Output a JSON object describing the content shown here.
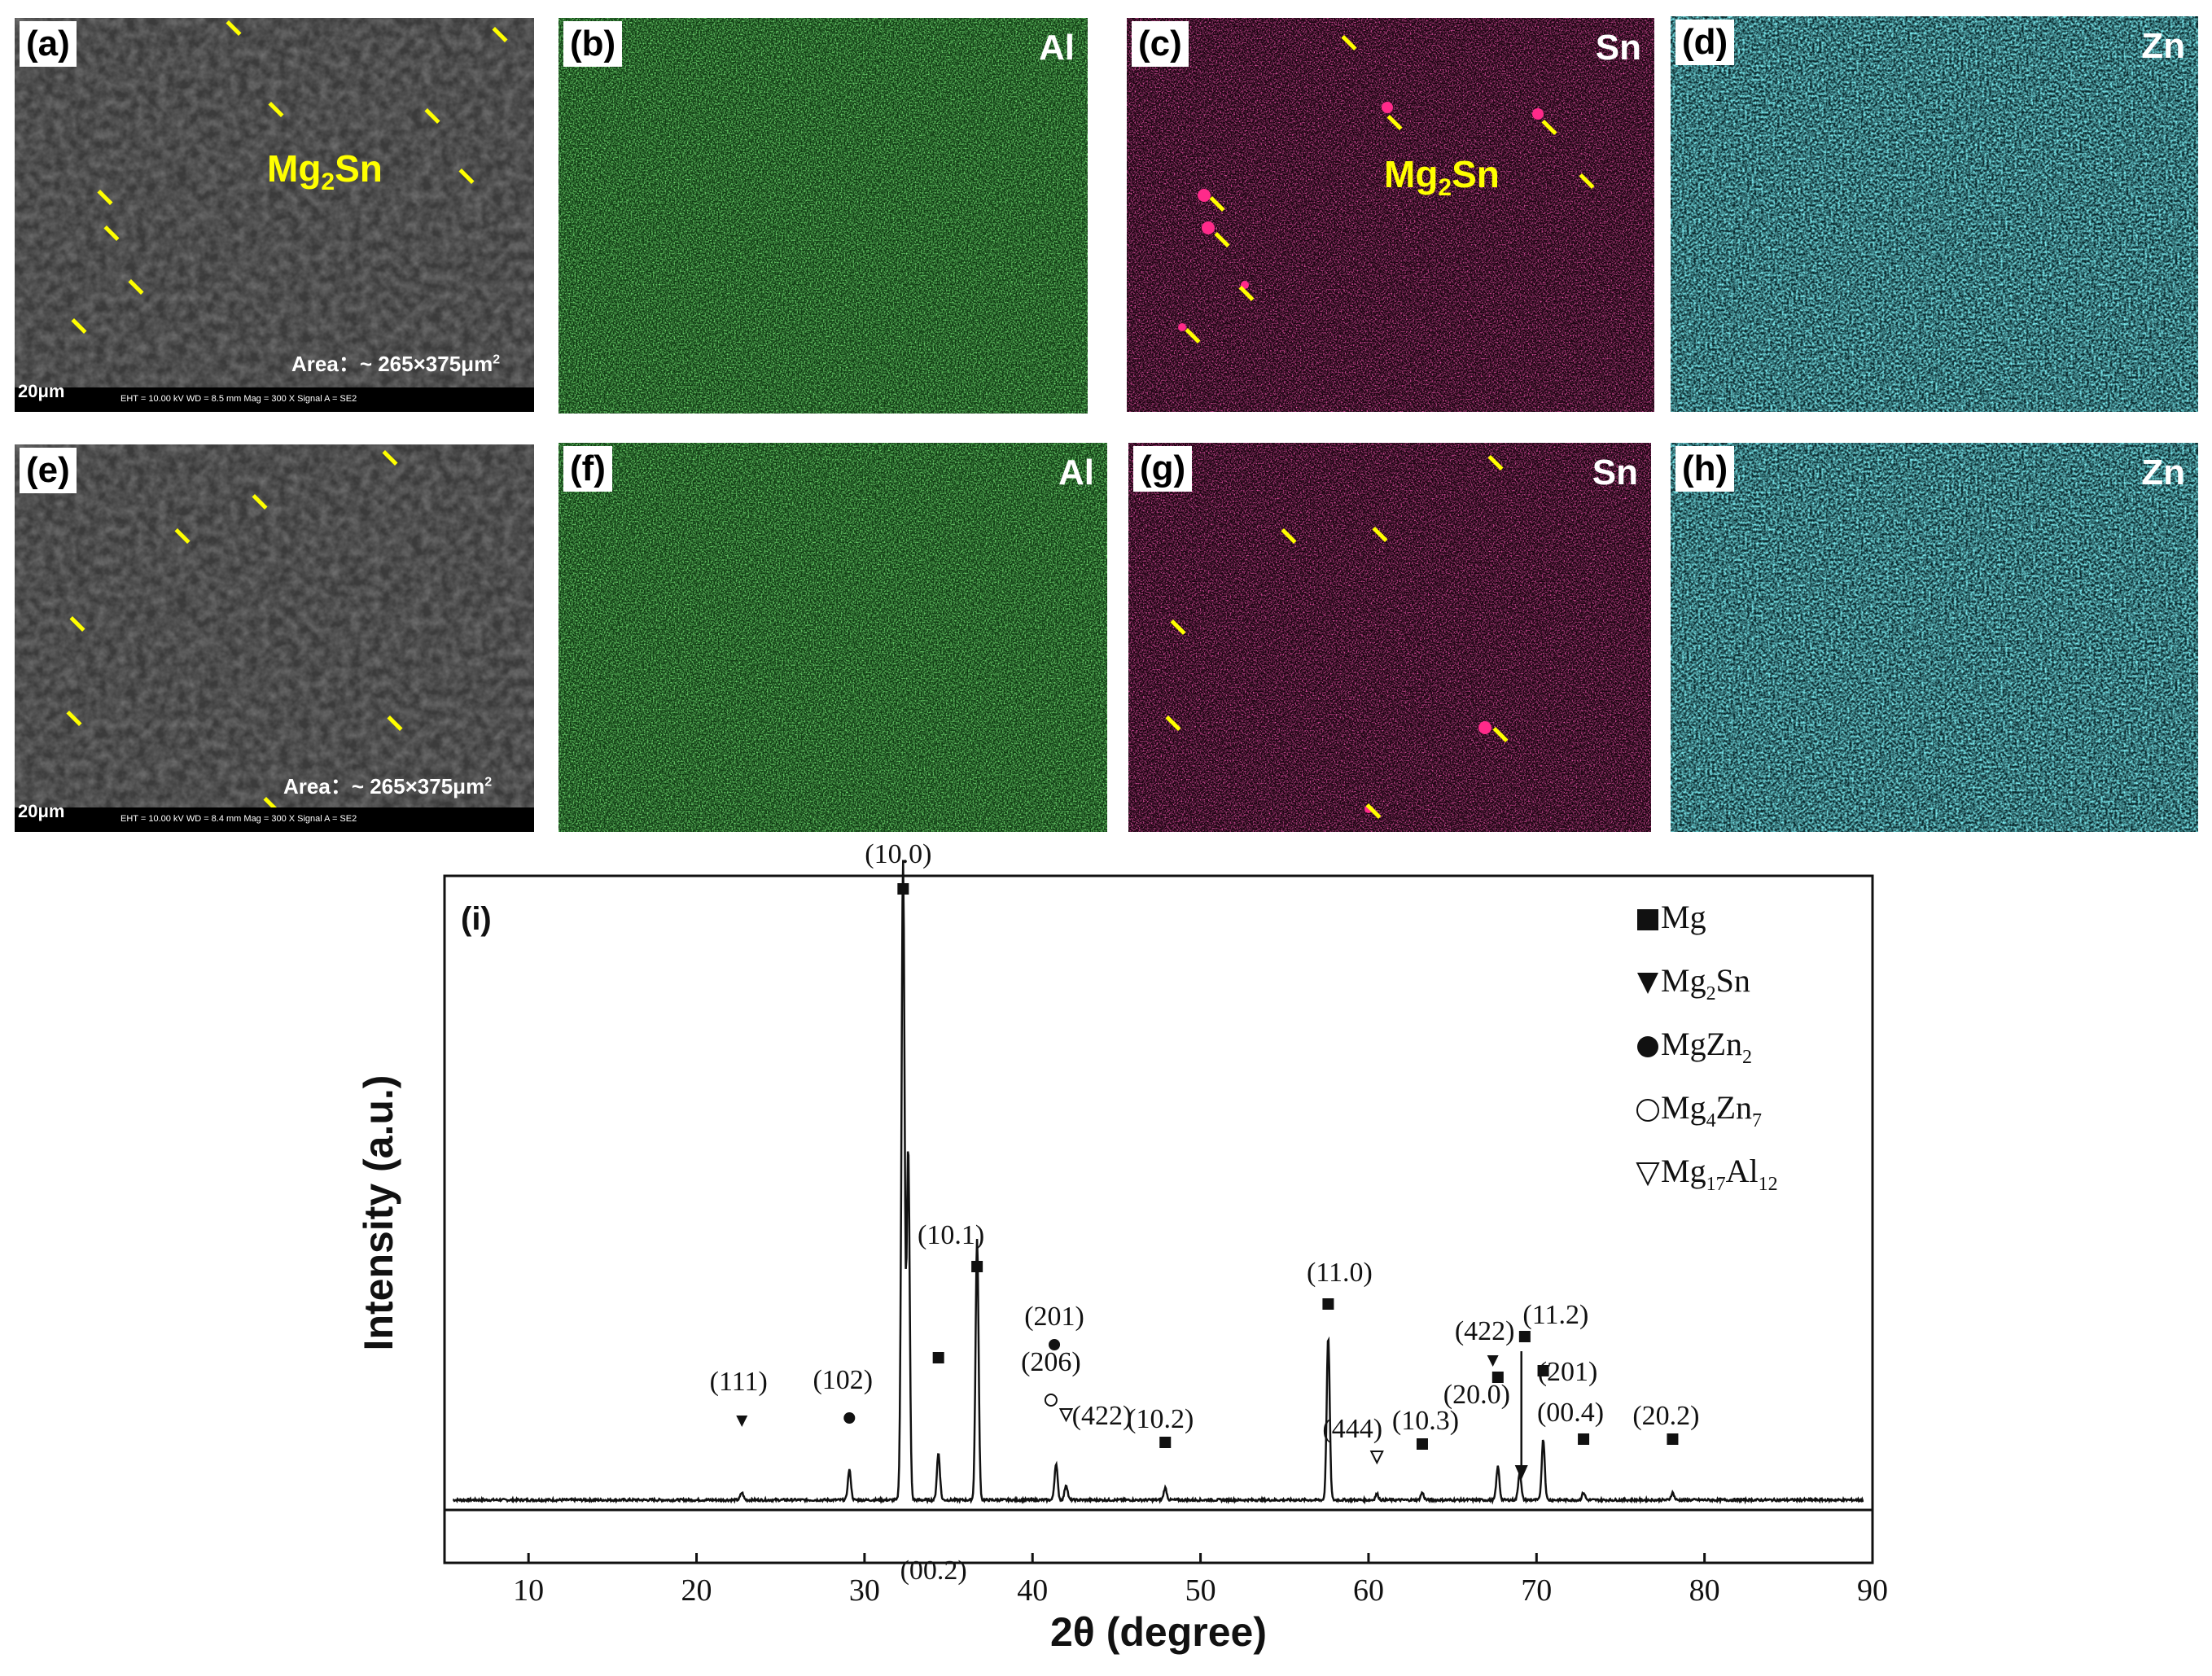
{
  "panels": [
    {
      "label": "(a)",
      "element": "",
      "phase": "Mg2Sn",
      "area": "Area：~ 265×375μm2",
      "scale": "20μm",
      "info": "EHT = 10.00 kV    WD = 8.5 mm    Mag = 300 X    Signal A = SE2"
    },
    {
      "label": "(b)",
      "element": "Al",
      "color": "#1f7a1f"
    },
    {
      "label": "(c)",
      "element": "Sn",
      "phase": "Mg2Sn",
      "color": "#e0106e"
    },
    {
      "label": "(d)",
      "element": "Zn",
      "color": "#29c6cf"
    },
    {
      "label": "(e)",
      "element": "",
      "area": "Area：~ 265×375μm2",
      "scale": "20μm",
      "info": "EHT = 10.00 kV    WD = 8.4 mm    Mag = 300 X    Signal A = SE2"
    },
    {
      "label": "(f)",
      "element": "Al",
      "color": "#1f7a1f"
    },
    {
      "label": "(g)",
      "element": "Sn",
      "color": "#e0106e"
    },
    {
      "label": "(h)",
      "element": "Zn",
      "color": "#29c6cf"
    }
  ],
  "chart_data": {
    "type": "line",
    "panel_label": "(i)",
    "xlabel": "2θ (degree)",
    "ylabel": "Intensity (a.u.)",
    "xlim": [
      5,
      90
    ],
    "xticks": [
      10,
      20,
      30,
      40,
      50,
      60,
      70,
      80,
      90
    ],
    "peaks": [
      {
        "x": 22.7,
        "h": 0.012
      },
      {
        "x": 29.1,
        "h": 0.05
      },
      {
        "x": 32.2,
        "h": 0.1
      },
      {
        "x": 32.3,
        "h": 1.0
      },
      {
        "x": 32.6,
        "h": 0.58
      },
      {
        "x": 34.4,
        "h": 0.077
      },
      {
        "x": 36.7,
        "h": 0.43
      },
      {
        "x": 41.4,
        "h": 0.06
      },
      {
        "x": 42.0,
        "h": 0.025
      },
      {
        "x": 47.9,
        "h": 0.02
      },
      {
        "x": 57.6,
        "h": 0.27
      },
      {
        "x": 60.5,
        "h": 0.01
      },
      {
        "x": 63.2,
        "h": 0.012
      },
      {
        "x": 67.7,
        "h": 0.055
      },
      {
        "x": 69.0,
        "h": 0.045
      },
      {
        "x": 70.4,
        "h": 0.1
      },
      {
        "x": 72.8,
        "h": 0.012
      },
      {
        "x": 78.1,
        "h": 0.012
      }
    ],
    "annotations": [
      {
        "text": "(111)",
        "x": 22.7,
        "marker": "triangle-down"
      },
      {
        "text": "(102)",
        "x": 29.1,
        "marker": "circle"
      },
      {
        "text": "(10.0)",
        "x": 32.3,
        "marker": "square"
      },
      {
        "text": "(00.2)",
        "x": 34.4,
        "marker": "square"
      },
      {
        "text": "(10.1)",
        "x": 36.7,
        "marker": "square"
      },
      {
        "text": "(201)",
        "x": 41.3,
        "marker": "circle"
      },
      {
        "text": "(206)",
        "x": 41.1,
        "marker": "circle-open"
      },
      {
        "text": "(422)",
        "x": 42.0,
        "marker": "triangle-open"
      },
      {
        "text": "(10.2)",
        "x": 47.9,
        "marker": "square"
      },
      {
        "text": "(11.0)",
        "x": 57.6,
        "marker": "square"
      },
      {
        "text": "(444)",
        "x": 60.5,
        "marker": "triangle-open"
      },
      {
        "text": "(10.3)",
        "x": 63.2,
        "marker": "square"
      },
      {
        "text": "(422)",
        "x": 67.4,
        "marker": "triangle-down"
      },
      {
        "text": "(20.0)",
        "x": 67.7,
        "marker": "square"
      },
      {
        "text": "(11.2)",
        "x": 69.3,
        "marker": "square"
      },
      {
        "text": "(201)",
        "x": 70.4,
        "marker": "square"
      },
      {
        "text": "(00.4)",
        "x": 72.8,
        "marker": "square"
      },
      {
        "text": "(20.2)",
        "x": 78.1,
        "marker": "square"
      }
    ],
    "legend": [
      {
        "marker": "square",
        "label": "Mg"
      },
      {
        "marker": "triangle-down",
        "label": "Mg2Sn"
      },
      {
        "marker": "circle",
        "label": "MgZn2"
      },
      {
        "marker": "circle-open",
        "label": "Mg4Zn7"
      },
      {
        "marker": "triangle-open",
        "label": "Mg17Al12"
      }
    ]
  }
}
